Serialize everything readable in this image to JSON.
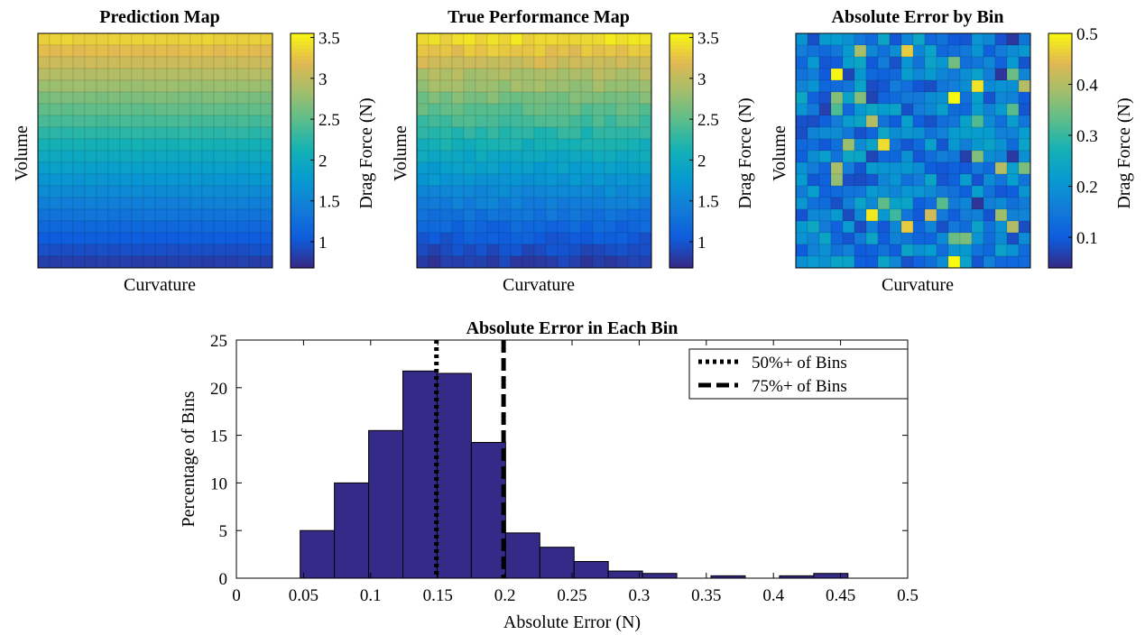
{
  "colors": {
    "bar_fill": "#352a87",
    "axis": "#000000",
    "background": "#ffffff",
    "colormap": "parula"
  },
  "chart_data": [
    {
      "type": "heatmap",
      "title": "Prediction Map",
      "xlabel": "Curvature",
      "ylabel": "Volume",
      "grid_size": [
        20,
        20
      ],
      "value_range": [
        0.6,
        3.6
      ],
      "colorbar": {
        "label": "Drag Force (N)",
        "ticks": [
          "1",
          "1.5",
          "2",
          "2.5",
          "3",
          "3.5"
        ],
        "tick_values": [
          1,
          1.5,
          2,
          2.5,
          3,
          3.5
        ],
        "range": [
          0.68,
          3.55
        ]
      },
      "row_values_top_to_bottom": [
        3.35,
        3.22,
        3.08,
        2.94,
        2.8,
        2.64,
        2.5,
        2.36,
        2.22,
        2.08,
        1.94,
        1.8,
        1.66,
        1.52,
        1.38,
        1.24,
        1.1,
        0.98,
        0.86,
        0.75
      ],
      "note": "values increase with volume, nearly constant across curvature"
    },
    {
      "type": "heatmap",
      "title": "True Performance Map",
      "xlabel": "Curvature",
      "ylabel": "Volume",
      "grid_size": [
        20,
        20
      ],
      "value_range": [
        0.6,
        3.6
      ],
      "colorbar": {
        "label": "Drag Force (N)",
        "ticks": [
          "1",
          "1.5",
          "2",
          "2.5",
          "3",
          "3.5"
        ],
        "tick_values": [
          1,
          1.5,
          2,
          2.5,
          3,
          3.5
        ],
        "range": [
          0.68,
          3.55
        ]
      },
      "row_values_top_to_bottom": [
        3.42,
        3.25,
        3.1,
        2.92,
        2.78,
        2.63,
        2.48,
        2.34,
        2.2,
        2.06,
        1.92,
        1.78,
        1.65,
        1.5,
        1.36,
        1.22,
        1.08,
        0.96,
        0.84,
        0.74
      ],
      "note": "values increase with volume with bin-level noise"
    },
    {
      "type": "heatmap",
      "title": "Absolute Error by Bin",
      "xlabel": "Curvature",
      "ylabel": "Volume",
      "grid_size": [
        20,
        20
      ],
      "value_range": [
        0.04,
        0.5
      ],
      "colorbar": {
        "label": "Drag Force (N)",
        "ticks": [
          "0.1",
          "0.2",
          "0.3",
          "0.4",
          "0.5"
        ],
        "tick_values": [
          0.1,
          0.2,
          0.3,
          0.4,
          0.5
        ],
        "range": [
          0.04,
          0.5
        ]
      },
      "typical_value": 0.16,
      "note": "mostly 0.1-0.25 with scattered higher values near 0.35-0.5"
    },
    {
      "type": "bar",
      "title": "Absolute Error in Each Bin",
      "xlabel": "Absolute Error (N)",
      "ylabel": "Percentage of Bins",
      "xlim": [
        0,
        0.5
      ],
      "ylim": [
        0,
        25
      ],
      "x_ticks": [
        "0",
        "0.05",
        "0.1",
        "0.15",
        "0.2",
        "0.25",
        "0.3",
        "0.35",
        "0.4",
        "0.45",
        "0.5"
      ],
      "x_tick_values": [
        0,
        0.05,
        0.1,
        0.15,
        0.2,
        0.25,
        0.3,
        0.35,
        0.4,
        0.45,
        0.5
      ],
      "y_ticks": [
        "0",
        "5",
        "10",
        "15",
        "20",
        "25"
      ],
      "y_tick_values": [
        0,
        5,
        10,
        15,
        20,
        25
      ],
      "bin_edges": [
        0.0475,
        0.073,
        0.0985,
        0.124,
        0.1495,
        0.175,
        0.2005,
        0.226,
        0.2515,
        0.277,
        0.3025,
        0.328,
        0.3535,
        0.379,
        0.4045,
        0.43,
        0.4555
      ],
      "values": [
        5.0,
        10.0,
        15.5,
        21.75,
        21.5,
        14.25,
        4.75,
        3.25,
        1.75,
        0.75,
        0.5,
        0,
        0.25,
        0,
        0.25,
        0.5
      ],
      "reference_lines": [
        {
          "x": 0.149,
          "style": "dotted",
          "label": "50%+ of Bins"
        },
        {
          "x": 0.199,
          "style": "dashed",
          "label": "75%+ of Bins"
        }
      ],
      "legend_position": "top-right"
    }
  ]
}
